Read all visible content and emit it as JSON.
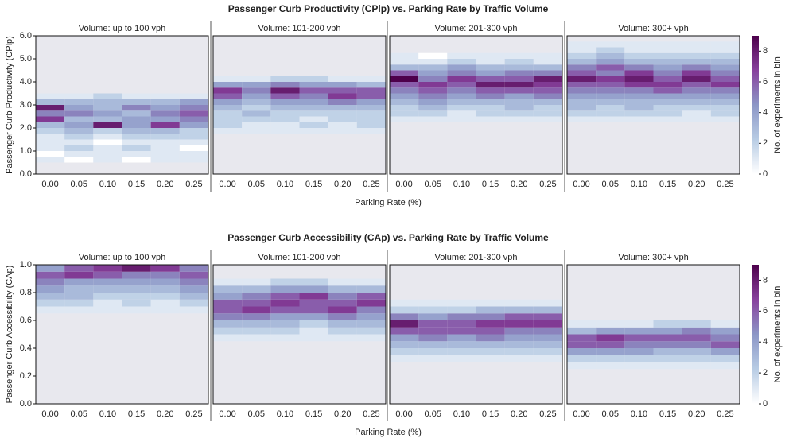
{
  "chart_data": [
    {
      "type": "heatmap",
      "title": "Passenger Curb Productivity (CPlp) vs. Parking Rate by Traffic Volume",
      "x_label": "Parking Rate (%)",
      "y_label": "Passenger Curb Productivity (CPlp)",
      "ylim": [
        0,
        6
      ],
      "yticks": [
        {
          "value": 0,
          "label": "0.0"
        },
        {
          "value": 1,
          "label": "1.0"
        },
        {
          "value": 2,
          "label": "2.0"
        },
        {
          "value": 3,
          "label": "3.0"
        },
        {
          "value": 4,
          "label": "4.0"
        },
        {
          "value": 5,
          "label": "5.0"
        },
        {
          "value": 6,
          "label": "6.0"
        }
      ],
      "colorbar_label": "No. of experiments in bin",
      "clim": [
        0,
        9
      ],
      "cticks": [
        0,
        2,
        4,
        6,
        8
      ],
      "colorscale": [
        "#ffffff",
        "#b8cce4",
        "#8c96c6",
        "#88419d",
        "#4d004b"
      ],
      "panels": [
        {
          "title": "Volume: up to 100 vph",
          "categories": [
            "0.00",
            "0.05",
            "0.10",
            "0.15",
            "0.20",
            "0.25"
          ],
          "ybins": [
            0.5,
            0.75,
            1,
            1.25,
            1.5,
            1.75,
            2,
            2.25,
            2.5,
            2.75,
            3,
            3.25,
            3.5
          ],
          "values": [
            [
              1,
              0,
              1,
              1,
              1,
              2,
              3,
              7,
              5,
              8,
              3,
              1
            ],
            [
              0,
              1,
              2,
              1,
              2,
              3,
              4,
              3,
              5,
              4,
              3,
              1
            ],
            [
              1,
              1,
              1,
              0,
              1,
              2,
              8,
              3,
              4,
              3,
              3,
              2
            ],
            [
              0,
              1,
              2,
              1,
              2,
              3,
              4,
              4,
              3,
              5,
              3,
              1
            ],
            [
              1,
              1,
              1,
              1,
              2,
              3,
              7,
              4,
              5,
              4,
              3,
              1
            ],
            [
              1,
              1,
              0,
              1,
              2,
              2,
              4,
              5,
              6,
              5,
              4,
              1
            ]
          ]
        },
        {
          "title": "Volume: 101-200 vph",
          "categories": [
            "0.00",
            "0.05",
            "0.10",
            "0.15",
            "0.20",
            "0.25"
          ],
          "ybins": [
            1.75,
            2,
            2.25,
            2.5,
            2.75,
            3,
            3.25,
            3.5,
            3.75,
            4,
            4.25
          ],
          "values": [
            [
              1,
              2,
              2,
              2,
              3,
              4,
              6,
              7,
              4,
              1
            ],
            [
              1,
              1,
              2,
              3,
              2,
              3,
              4,
              5,
              4,
              1
            ],
            [
              1,
              1,
              2,
              2,
              3,
              4,
              6,
              8,
              5,
              2
            ],
            [
              1,
              2,
              1,
              2,
              3,
              4,
              5,
              6,
              4,
              2
            ],
            [
              1,
              1,
              2,
              2,
              3,
              5,
              7,
              6,
              4,
              1
            ],
            [
              1,
              2,
              2,
              2,
              3,
              4,
              6,
              6,
              3,
              1
            ]
          ]
        },
        {
          "title": "Volume: 201-300 vph",
          "categories": [
            "0.00",
            "0.05",
            "0.10",
            "0.15",
            "0.20",
            "0.25"
          ],
          "ybins": [
            2.25,
            2.5,
            2.75,
            3,
            3.25,
            3.5,
            3.75,
            4,
            4.25,
            4.5,
            4.75,
            5,
            5.25
          ],
          "values": [
            [
              1,
              2,
              2,
              3,
              4,
              5,
              6,
              9,
              6,
              3,
              1,
              1
            ],
            [
              1,
              2,
              3,
              4,
              5,
              6,
              7,
              5,
              4,
              3,
              1,
              0
            ],
            [
              1,
              1,
              2,
              3,
              4,
              5,
              6,
              7,
              5,
              4,
              2,
              1
            ],
            [
              1,
              2,
              2,
              3,
              5,
              6,
              8,
              6,
              4,
              3,
              1,
              1
            ],
            [
              1,
              2,
              3,
              3,
              4,
              6,
              8,
              6,
              5,
              3,
              2,
              1
            ],
            [
              1,
              2,
              2,
              3,
              5,
              6,
              7,
              8,
              5,
              3,
              1,
              1
            ]
          ]
        },
        {
          "title": "Volume: 300+ vph",
          "categories": [
            "0.00",
            "0.05",
            "0.10",
            "0.15",
            "0.20",
            "0.25"
          ],
          "ybins": [
            2.25,
            2.5,
            2.75,
            3,
            3.25,
            3.5,
            3.75,
            4,
            4.25,
            4.5,
            4.75,
            5,
            5.25,
            5.5,
            5.75
          ],
          "values": [
            [
              1,
              2,
              3,
              3,
              4,
              5,
              6,
              8,
              6,
              5,
              3,
              2,
              1,
              1
            ],
            [
              1,
              2,
              2,
              3,
              4,
              5,
              6,
              7,
              5,
              6,
              4,
              3,
              2,
              1
            ],
            [
              1,
              2,
              3,
              3,
              4,
              5,
              7,
              8,
              7,
              5,
              3,
              2,
              1,
              1
            ],
            [
              1,
              2,
              2,
              3,
              4,
              6,
              7,
              6,
              5,
              4,
              3,
              2,
              1,
              1
            ],
            [
              1,
              1,
              2,
              3,
              4,
              5,
              6,
              8,
              7,
              5,
              3,
              2,
              1,
              1
            ],
            [
              1,
              2,
              2,
              3,
              4,
              5,
              7,
              6,
              5,
              4,
              3,
              2,
              1,
              1
            ]
          ]
        }
      ]
    },
    {
      "type": "heatmap",
      "title": "Passenger Curb Accessibility (CAp) vs. Parking Rate by Traffic Volume",
      "x_label": "Parking Rate (%)",
      "y_label": "Passenger Curb Accessibility (CAp)",
      "ylim": [
        0,
        1
      ],
      "yticks": [
        {
          "value": 0,
          "label": "0.0"
        },
        0.2,
        0.4,
        0.6,
        0.8,
        {
          "value": 1,
          "label": "1.0"
        }
      ],
      "colorbar_label": "No. of experiments in bin",
      "clim": [
        0,
        9
      ],
      "cticks": [
        0,
        2,
        4,
        6,
        8
      ],
      "colorscale": [
        "#ffffff",
        "#b8cce4",
        "#8c96c6",
        "#88419d",
        "#4d004b"
      ],
      "panels": [
        {
          "title": "Volume: up to 100 vph",
          "categories": [
            "0.00",
            "0.05",
            "0.10",
            "0.15",
            "0.20",
            "0.25"
          ],
          "ybins": [
            0.65,
            0.7,
            0.75,
            0.8,
            0.85,
            0.9,
            0.95,
            1
          ],
          "values": [
            [
              1,
              2,
              3,
              4,
              5,
              6,
              4
            ],
            [
              1,
              2,
              3,
              3,
              4,
              7,
              6
            ],
            [
              1,
              1,
              2,
              3,
              4,
              6,
              7
            ],
            [
              1,
              2,
              2,
              3,
              4,
              5,
              8
            ],
            [
              1,
              1,
              2,
              3,
              4,
              5,
              7
            ],
            [
              1,
              2,
              3,
              4,
              5,
              6,
              5
            ]
          ]
        },
        {
          "title": "Volume: 101-200 vph",
          "categories": [
            "0.00",
            "0.05",
            "0.10",
            "0.15",
            "0.20",
            "0.25"
          ],
          "ybins": [
            0.45,
            0.5,
            0.55,
            0.6,
            0.65,
            0.7,
            0.75,
            0.8,
            0.85,
            0.9
          ],
          "values": [
            [
              1,
              2,
              3,
              5,
              6,
              6,
              4,
              3,
              1
            ],
            [
              1,
              2,
              3,
              5,
              7,
              6,
              5,
              3,
              1
            ],
            [
              1,
              2,
              3,
              4,
              6,
              7,
              6,
              4,
              2
            ],
            [
              1,
              1,
              2,
              4,
              6,
              6,
              7,
              4,
              2
            ],
            [
              1,
              2,
              3,
              5,
              7,
              6,
              5,
              3,
              1
            ],
            [
              1,
              2,
              3,
              4,
              5,
              7,
              6,
              3,
              1
            ]
          ]
        },
        {
          "title": "Volume: 201-300 vph",
          "categories": [
            "0.00",
            "0.05",
            "0.10",
            "0.15",
            "0.20",
            "0.25"
          ],
          "ybins": [
            0.3,
            0.35,
            0.4,
            0.45,
            0.5,
            0.55,
            0.6,
            0.65,
            0.7,
            0.75
          ],
          "values": [
            [
              1,
              2,
              3,
              4,
              6,
              8,
              5,
              2,
              1
            ],
            [
              1,
              2,
              3,
              5,
              6,
              6,
              4,
              2,
              1
            ],
            [
              1,
              2,
              3,
              4,
              6,
              6,
              5,
              2,
              1
            ],
            [
              1,
              2,
              3,
              5,
              6,
              7,
              5,
              3,
              1
            ],
            [
              1,
              2,
              3,
              4,
              5,
              7,
              6,
              3,
              1
            ],
            [
              1,
              2,
              3,
              4,
              5,
              7,
              6,
              3,
              1
            ]
          ]
        },
        {
          "title": "Volume: 300+ vph",
          "categories": [
            "0.00",
            "0.05",
            "0.10",
            "0.15",
            "0.20",
            "0.25"
          ],
          "ybins": [
            0.25,
            0.3,
            0.35,
            0.4,
            0.45,
            0.5,
            0.55,
            0.6
          ],
          "values": [
            [
              1,
              2,
              4,
              6,
              6,
              3,
              1
            ],
            [
              1,
              2,
              4,
              6,
              7,
              4,
              1
            ],
            [
              1,
              2,
              4,
              5,
              6,
              4,
              1
            ],
            [
              1,
              2,
              3,
              5,
              6,
              4,
              2
            ],
            [
              1,
              2,
              3,
              5,
              6,
              5,
              2
            ],
            [
              1,
              2,
              4,
              6,
              5,
              4,
              1
            ]
          ]
        }
      ]
    }
  ]
}
